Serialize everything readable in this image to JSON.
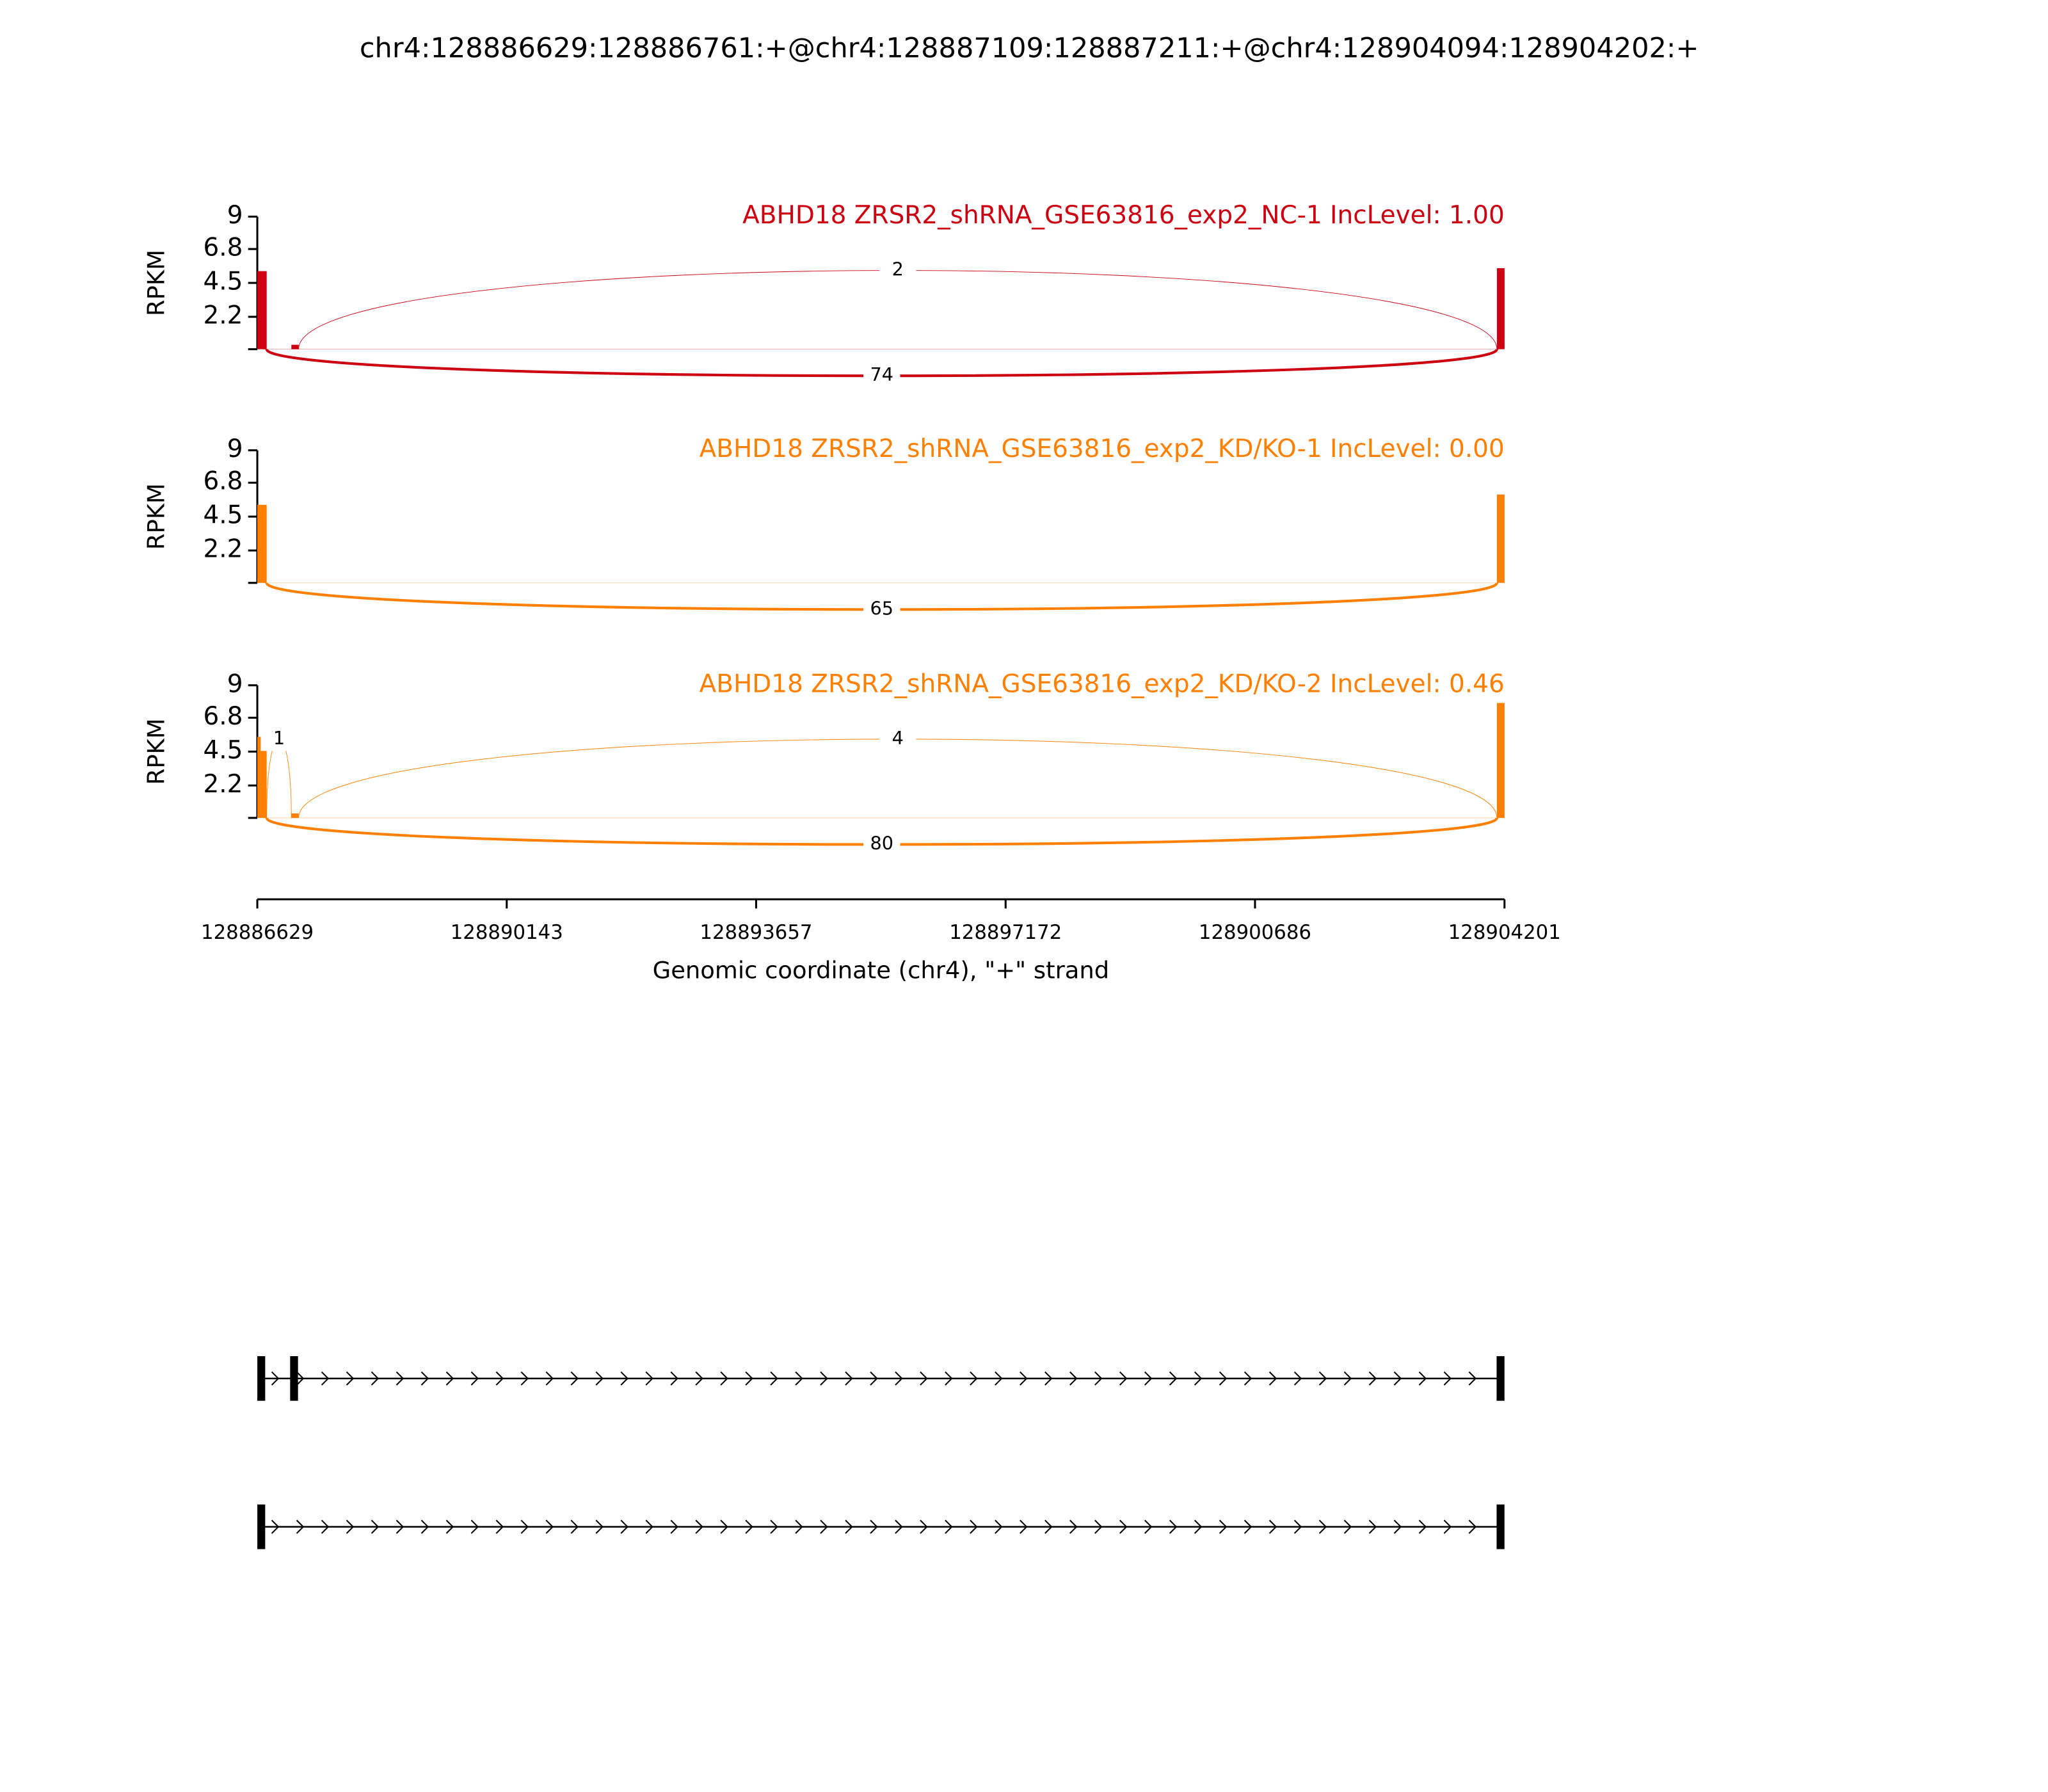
{
  "chart_data": {
    "type": "sashimi",
    "title": "chr4:128886629:128886761:+@chr4:128887109:128887211:+@chr4:128904094:128904202:+",
    "xlabel": "Genomic coordinate (chr4), \"+\" strand",
    "xlim": [
      128886629,
      128904201
    ],
    "xticks": [
      128886629,
      128890143,
      128893657,
      128897172,
      128900686,
      128904201
    ],
    "panels": [
      {
        "title": "ABHD18 ZRSR2_shRNA_GSE63816_exp2_NC-1 IncLevel: 1.00",
        "color": "#cc0011",
        "ylabel": "RPKM",
        "ylim": [
          0,
          9
        ],
        "yticks": [
          2.2,
          4.5,
          6.8,
          9
        ],
        "coverage": [
          {
            "start": 128886629,
            "end": 128886761,
            "value": 5.3
          },
          {
            "start": 128887109,
            "end": 128887211,
            "value": 0.3
          },
          {
            "start": 128904094,
            "end": 128904202,
            "value": 5.5
          }
        ],
        "junctions": [
          {
            "start": 128887211,
            "end": 128904094,
            "count": 2
          },
          {
            "start": 128886761,
            "end": 128904094,
            "count": 74
          }
        ]
      },
      {
        "title": "ABHD18 ZRSR2_shRNA_GSE63816_exp2_KD/KO-1 IncLevel: 0.00",
        "color": "#ff8000",
        "ylabel": "RPKM",
        "ylim": [
          0,
          9
        ],
        "yticks": [
          2.2,
          4.5,
          6.8,
          9
        ],
        "coverage": [
          {
            "start": 128886629,
            "end": 128886761,
            "value": 5.3
          },
          {
            "start": 128887109,
            "end": 128887211,
            "value": 0
          },
          {
            "start": 128904094,
            "end": 128904202,
            "value": 6.0
          }
        ],
        "junctions": [
          {
            "start": 128886761,
            "end": 128904094,
            "count": 65
          }
        ]
      },
      {
        "title": "ABHD18 ZRSR2_shRNA_GSE63816_exp2_KD/KO-2 IncLevel: 0.46",
        "color": "#ff8000",
        "ylabel": "RPKM",
        "ylim": [
          0,
          9
        ],
        "yticks": [
          2.2,
          4.5,
          6.8,
          9
        ],
        "coverage": [
          {
            "start": 128886629,
            "end": 128886761,
            "value": 5.5
          },
          {
            "start": 128887109,
            "end": 128887211,
            "value": 0.3
          },
          {
            "start": 128904094,
            "end": 128904202,
            "value": 7.8
          }
        ],
        "junctions": [
          {
            "start": 128886761,
            "end": 128887109,
            "count": 1
          },
          {
            "start": 128887211,
            "end": 128904094,
            "count": 4
          },
          {
            "start": 128886761,
            "end": 128904094,
            "count": 80
          }
        ]
      }
    ]
  }
}
